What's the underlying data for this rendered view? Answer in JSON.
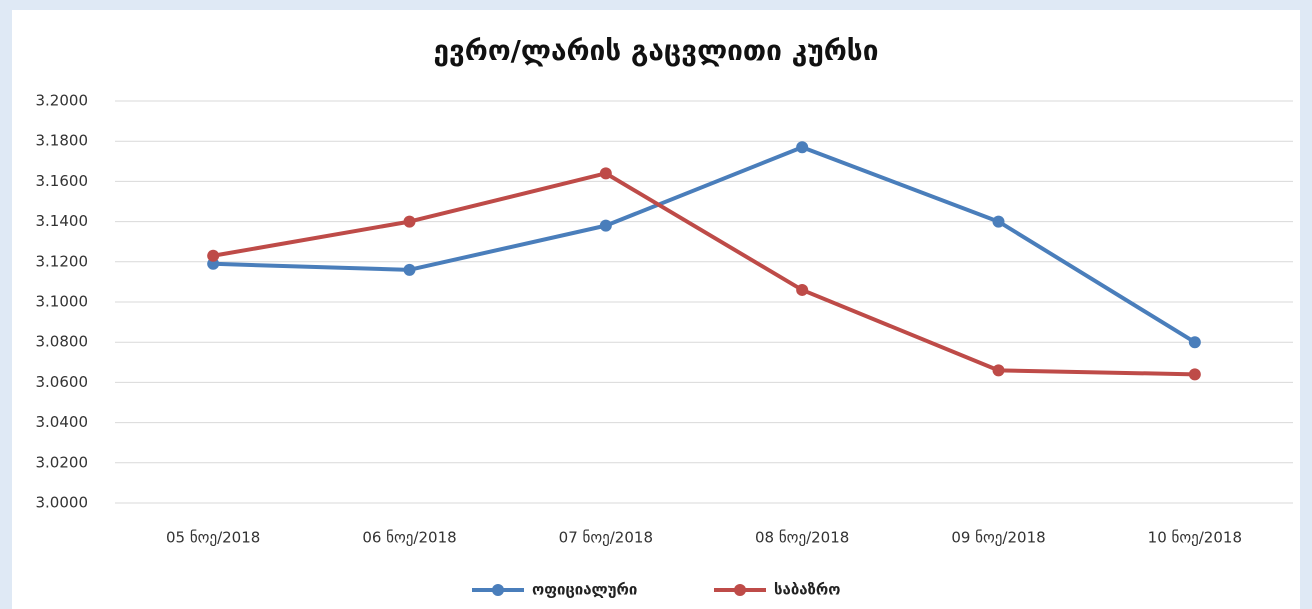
{
  "chart_data": {
    "type": "line",
    "title": "ევრო/ლარის გაცვლითი კურსი",
    "categories": [
      "05 ნოე/2018",
      "06 ნოე/2018",
      "07 ნოე/2018",
      "08 ნოე/2018",
      "09 ნოე/2018",
      "10 ნოე/2018"
    ],
    "series": [
      {
        "name": "ოფიციალური",
        "color": "#4a7ebb",
        "values": [
          3.119,
          3.116,
          3.138,
          3.177,
          3.14,
          3.08
        ]
      },
      {
        "name": "საბაზრო",
        "color": "#be4b48",
        "values": [
          3.123,
          3.14,
          3.164,
          3.106,
          3.066,
          3.064
        ]
      }
    ],
    "ylim": [
      3.0,
      3.2
    ],
    "yticks": [
      {
        "value": 3.0,
        "label": "3.0000"
      },
      {
        "value": 3.02,
        "label": "3.0200"
      },
      {
        "value": 3.04,
        "label": "3.0400"
      },
      {
        "value": 3.06,
        "label": "3.0600"
      },
      {
        "value": 3.08,
        "label": "3.0800"
      },
      {
        "value": 3.1,
        "label": "3.1000"
      },
      {
        "value": 3.12,
        "label": "3.1200"
      },
      {
        "value": 3.14,
        "label": "3.1400"
      },
      {
        "value": 3.16,
        "label": "3.1600"
      },
      {
        "value": 3.18,
        "label": "3.1800"
      },
      {
        "value": 3.2,
        "label": "3.2000"
      }
    ],
    "grid": true,
    "legend": "bottom"
  }
}
